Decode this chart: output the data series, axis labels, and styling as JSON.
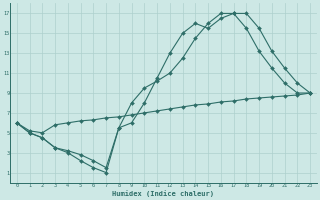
{
  "xlabel": "Humidex (Indice chaleur)",
  "bg_color": "#cde8e5",
  "grid_color": "#aed0cd",
  "line_color": "#2e6e68",
  "xlim": [
    -0.5,
    23.5
  ],
  "ylim": [
    0,
    18
  ],
  "xticks": [
    0,
    1,
    2,
    3,
    4,
    5,
    6,
    7,
    8,
    9,
    10,
    11,
    12,
    13,
    14,
    15,
    16,
    17,
    18,
    19,
    20,
    21,
    22,
    23
  ],
  "yticks": [
    1,
    3,
    5,
    7,
    9,
    11,
    13,
    15,
    17
  ],
  "line1_x": [
    0,
    1,
    2,
    3,
    4,
    5,
    6,
    7,
    8,
    9,
    10,
    11,
    12,
    13,
    14,
    15,
    16,
    17,
    18,
    19,
    20,
    21,
    22,
    23
  ],
  "line1_y": [
    6.0,
    5.0,
    4.5,
    3.5,
    3.0,
    2.2,
    1.5,
    1.0,
    5.5,
    6.0,
    8.0,
    10.5,
    13.0,
    15.0,
    16.0,
    15.5,
    16.5,
    17.0,
    17.0,
    15.5,
    13.2,
    11.5,
    10.0,
    9.0
  ],
  "line2_x": [
    0,
    1,
    2,
    3,
    4,
    5,
    6,
    7,
    8,
    9,
    10,
    11,
    12,
    13,
    14,
    15,
    16,
    17,
    18,
    19,
    20,
    21,
    22,
    23
  ],
  "line2_y": [
    6.0,
    5.0,
    4.5,
    3.5,
    3.2,
    2.8,
    2.2,
    1.5,
    5.5,
    8.0,
    9.5,
    10.2,
    11.0,
    12.5,
    14.5,
    16.0,
    17.0,
    17.0,
    15.5,
    13.2,
    11.5,
    10.0,
    9.0,
    9.0
  ],
  "line3_x": [
    0,
    1,
    2,
    3,
    4,
    5,
    6,
    7,
    8,
    9,
    10,
    11,
    12,
    13,
    14,
    15,
    16,
    17,
    18,
    19,
    20,
    21,
    22,
    23
  ],
  "line3_y": [
    6.0,
    5.2,
    5.0,
    5.8,
    6.0,
    6.2,
    6.3,
    6.5,
    6.6,
    6.8,
    7.0,
    7.2,
    7.4,
    7.6,
    7.8,
    7.9,
    8.1,
    8.2,
    8.4,
    8.5,
    8.6,
    8.7,
    8.8,
    9.0
  ]
}
